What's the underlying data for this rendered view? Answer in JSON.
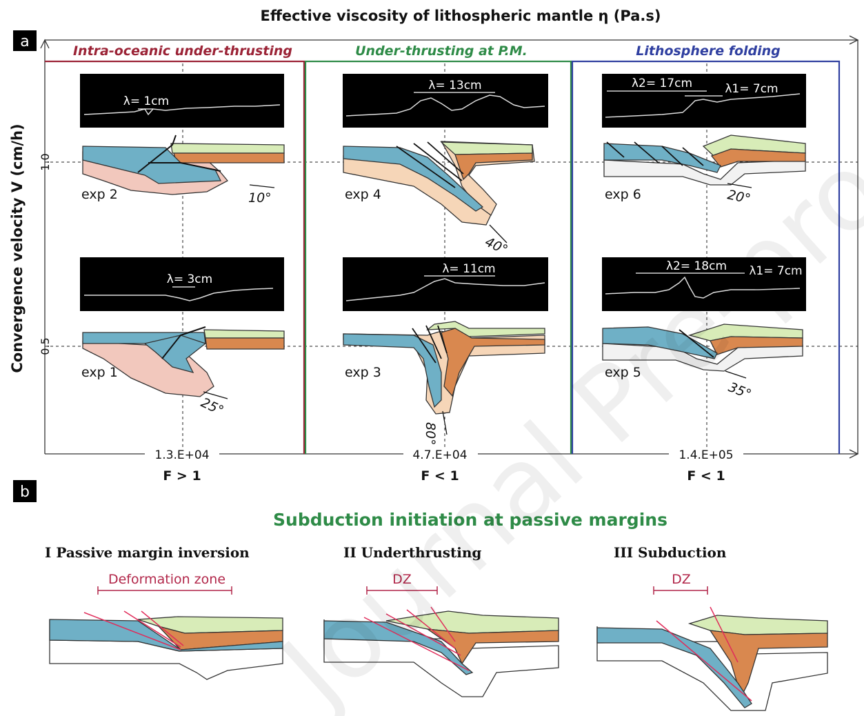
{
  "panel_a": {
    "label": "a",
    "title": "Effective viscosity of lithospheric mantle η (Pa.s)",
    "y_axis_label": "Convergence velocity V (cm/h)",
    "y_ticks": [
      "1.0",
      "0.5"
    ],
    "regimes": [
      {
        "name": "Intra-oceanic under-thrusting",
        "color": "#9b2336"
      },
      {
        "name": "Under-thrusting at P.M.",
        "color": "#2e8b47"
      },
      {
        "name": "Lithosphere folding",
        "color": "#2f3fa0"
      }
    ],
    "x_values": [
      "1.3.E+04",
      "4.7.E+04",
      "1.4.E+05"
    ],
    "f_labels": [
      "F > 1",
      "F < 1",
      "F < 1"
    ],
    "experiments": [
      {
        "name": "exp 2",
        "angle": "10°",
        "wavelength": "λ= 1cm"
      },
      {
        "name": "exp 4",
        "angle": "40°",
        "wavelength": "λ= 13cm"
      },
      {
        "name": "exp 6",
        "angle": "20°",
        "wavelength1": "λ2= 17cm",
        "wavelength2": "λ1= 7cm"
      },
      {
        "name": "exp 1",
        "angle": "25°",
        "wavelength": "λ= 3cm"
      },
      {
        "name": "exp 3",
        "angle": "80°",
        "wavelength": "λ= 11cm"
      },
      {
        "name": "exp 5",
        "angle": "35°",
        "wavelength1": "λ2= 18cm",
        "wavelength2": "λ1= 7cm"
      }
    ]
  },
  "panel_b": {
    "label": "b",
    "title": "Subduction initiation at passive margins",
    "stages": [
      {
        "title": "I Passive margin inversion",
        "zone": "Deformation zone"
      },
      {
        "title": "II Underthrusting",
        "zone": "DZ"
      },
      {
        "title": "III Subduction",
        "zone": "DZ"
      }
    ]
  },
  "watermark": "Journal Pre-proof",
  "colors": {
    "oceanic": "#6fb0c6",
    "upper_plate": "#d9884f",
    "sediment": "#d8ecb8",
    "mantle_pink": "#f2c8bd",
    "mantle_peach": "#f6d6b8",
    "mantle_grey": "#f2f2f2"
  }
}
